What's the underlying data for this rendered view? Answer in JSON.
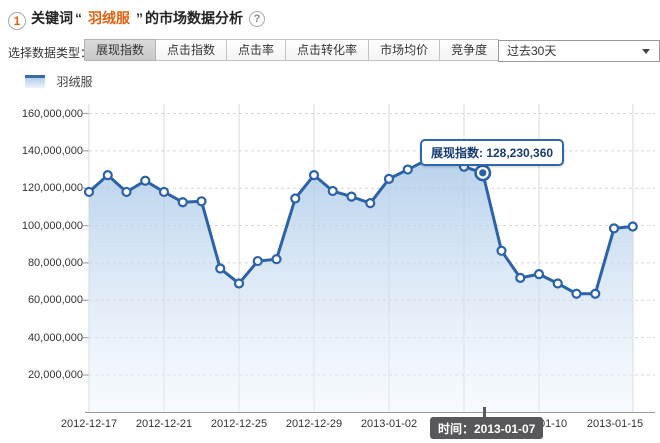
{
  "header": {
    "step_number": "1",
    "prefix": "关键词",
    "quote_open": "“",
    "keyword": "羽绒服",
    "quote_close": "”",
    "suffix": "的市场数据分析",
    "help_icon": "?"
  },
  "controls": {
    "label": "选择数据类型：",
    "tabs": [
      {
        "name": "tab-impression-index",
        "label": "展现指数",
        "selected": true
      },
      {
        "name": "tab-click-index",
        "label": "点击指数",
        "selected": false
      },
      {
        "name": "tab-click-rate",
        "label": "点击率",
        "selected": false
      },
      {
        "name": "tab-click-conversion-rate",
        "label": "点击转化率",
        "selected": false
      },
      {
        "name": "tab-market-avg-price",
        "label": "市场均价",
        "selected": false
      },
      {
        "name": "tab-competition",
        "label": "竞争度",
        "selected": false
      }
    ],
    "date_range": {
      "value": "过去30天"
    }
  },
  "legend": {
    "series_label": "羽绒服"
  },
  "tooltip": {
    "text": "展现指数: 128,230,360"
  },
  "time_tooltip": {
    "text": "时间：2013-01-07"
  },
  "colors": {
    "line": "#2b62a8",
    "area_top": "#a6c6e7",
    "area_bottom": "#eef5fc",
    "keyword_accent": "#e4610f",
    "tooltip_border": "#2e67ad",
    "tooltip_text": "#173c75",
    "dark_tooltip_bg": "#58585a",
    "grid": "#dadade",
    "axis": "#9a9a9a"
  },
  "chart_data": {
    "type": "area",
    "title": "",
    "xlabel": "",
    "ylabel": "",
    "grid": true,
    "legend_position": "top-left",
    "ylim": [
      0,
      165000000
    ],
    "y_tick_labels": [
      "160,000,000",
      "140,000,000",
      "120,000,000",
      "100,000,000",
      "80,000,000",
      "60,000,000",
      "40,000,000",
      "20,000,000"
    ],
    "y_tick_values": [
      160000000,
      140000000,
      120000000,
      100000000,
      80000000,
      60000000,
      40000000,
      20000000
    ],
    "x_tick_labels": [
      "2012-12-17",
      "2012-12-21",
      "2012-12-25",
      "2012-12-29",
      "2013-01-02",
      "2013-01-06",
      "2013-01-10",
      "2013-01-15"
    ],
    "x_tick_point_indexes": [
      0,
      4,
      8,
      12,
      16,
      20,
      24,
      29
    ],
    "series": [
      {
        "name": "羽绒服",
        "dates": [
          "2012-12-17",
          "2012-12-18",
          "2012-12-19",
          "2012-12-20",
          "2012-12-21",
          "2012-12-22",
          "2012-12-23",
          "2012-12-24",
          "2012-12-25",
          "2012-12-26",
          "2012-12-27",
          "2012-12-28",
          "2012-12-29",
          "2012-12-30",
          "2012-12-31",
          "2013-01-01",
          "2013-01-02",
          "2013-01-03",
          "2013-01-04",
          "2013-01-05",
          "2013-01-06",
          "2013-01-07",
          "2013-01-08",
          "2013-01-09",
          "2013-01-10",
          "2013-01-11",
          "2013-01-12",
          "2013-01-13",
          "2013-01-14",
          "2013-01-15"
        ],
        "values": [
          118000000,
          127000000,
          118000000,
          124000000,
          118000000,
          112500000,
          113000000,
          77000000,
          69000000,
          81000000,
          82000000,
          114500000,
          127000000,
          118500000,
          115500000,
          112000000,
          125000000,
          130000000,
          135000000,
          137000000,
          131500000,
          128230360,
          86500000,
          72000000,
          74000000,
          69000000,
          63500000,
          63500000,
          98500000,
          99500000
        ]
      }
    ],
    "selected_point": {
      "date": "2013-01-07",
      "value": 128230360,
      "index": 21
    }
  }
}
